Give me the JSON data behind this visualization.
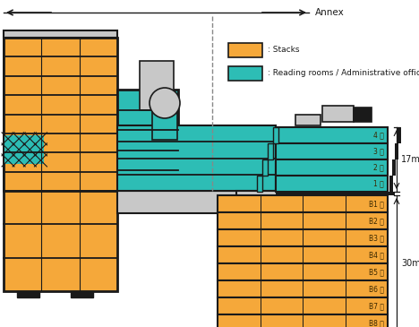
{
  "background_color": "#ffffff",
  "orange_color": "#F5A83A",
  "teal_color": "#2DBDB5",
  "dark_color": "#1a1a1a",
  "gray_color": "#AAAAAA",
  "light_gray": "#C8C8C8",
  "med_gray": "#888888",
  "annex_label": "Annex",
  "stacks_label": "Stacks",
  "reading_label": "Reading rooms / Administrative offices",
  "dim_17m": "17m",
  "dim_30m": "30m",
  "above_floors": [
    "4 階",
    "3 階",
    "2 階",
    "1 階"
  ],
  "below_floors": [
    "B1 階",
    "B2 階",
    "B3 階",
    "B4 階",
    "B5 階",
    "B6 階",
    "B7 階",
    "B8 階"
  ],
  "fig_w": 4.68,
  "fig_h": 3.65,
  "dpi": 100
}
